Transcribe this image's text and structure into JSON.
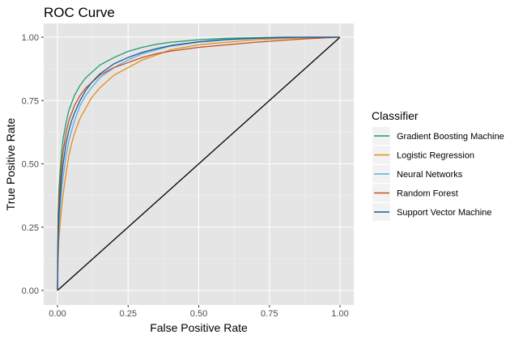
{
  "chart_data": {
    "type": "line",
    "title": "ROC Curve",
    "xlabel": "False Positive Rate",
    "ylabel": "True Positive Rate",
    "xlim": [
      0,
      1
    ],
    "ylim": [
      0,
      1
    ],
    "x_ticks": [
      "0.00",
      "0.25",
      "0.50",
      "0.75",
      "1.00"
    ],
    "y_ticks": [
      "0.00",
      "0.25",
      "0.50",
      "0.75",
      "1.00"
    ],
    "grid": true,
    "panel_background": "#e5e5e5",
    "legend": {
      "title": "Classifier",
      "position": "right"
    },
    "series": [
      {
        "name": "Gradient Boosting Machine",
        "color": "#1b9e6b",
        "points": [
          [
            0,
            0
          ],
          [
            0.002,
            0.3
          ],
          [
            0.005,
            0.4
          ],
          [
            0.01,
            0.48
          ],
          [
            0.015,
            0.55
          ],
          [
            0.02,
            0.6
          ],
          [
            0.03,
            0.66
          ],
          [
            0.04,
            0.71
          ],
          [
            0.05,
            0.74
          ],
          [
            0.06,
            0.77
          ],
          [
            0.08,
            0.81
          ],
          [
            0.1,
            0.84
          ],
          [
            0.12,
            0.86
          ],
          [
            0.15,
            0.89
          ],
          [
            0.2,
            0.92
          ],
          [
            0.25,
            0.944
          ],
          [
            0.3,
            0.96
          ],
          [
            0.35,
            0.972
          ],
          [
            0.4,
            0.98
          ],
          [
            0.5,
            0.99
          ],
          [
            0.6,
            0.996
          ],
          [
            0.7,
            0.998
          ],
          [
            0.8,
            1.0
          ],
          [
            0.9,
            1.0
          ],
          [
            1.0,
            1.0
          ]
        ]
      },
      {
        "name": "Logistic Regression",
        "color": "#e58b1c",
        "points": [
          [
            0,
            0
          ],
          [
            0.002,
            0.12
          ],
          [
            0.005,
            0.2
          ],
          [
            0.01,
            0.27
          ],
          [
            0.015,
            0.33
          ],
          [
            0.02,
            0.38
          ],
          [
            0.03,
            0.46
          ],
          [
            0.04,
            0.53
          ],
          [
            0.05,
            0.58
          ],
          [
            0.06,
            0.62
          ],
          [
            0.08,
            0.68
          ],
          [
            0.1,
            0.72
          ],
          [
            0.12,
            0.76
          ],
          [
            0.15,
            0.8
          ],
          [
            0.2,
            0.85
          ],
          [
            0.25,
            0.88
          ],
          [
            0.3,
            0.91
          ],
          [
            0.35,
            0.93
          ],
          [
            0.4,
            0.95
          ],
          [
            0.5,
            0.97
          ],
          [
            0.6,
            0.98
          ],
          [
            0.7,
            0.99
          ],
          [
            0.8,
            0.995
          ],
          [
            0.9,
            0.998
          ],
          [
            1.0,
            1.0
          ]
        ]
      },
      {
        "name": "Neural Networks",
        "color": "#5aaee0",
        "points": [
          [
            0,
            0
          ],
          [
            0.002,
            0.16
          ],
          [
            0.005,
            0.25
          ],
          [
            0.01,
            0.33
          ],
          [
            0.015,
            0.4
          ],
          [
            0.02,
            0.45
          ],
          [
            0.03,
            0.53
          ],
          [
            0.04,
            0.59
          ],
          [
            0.05,
            0.63
          ],
          [
            0.06,
            0.67
          ],
          [
            0.08,
            0.73
          ],
          [
            0.1,
            0.77
          ],
          [
            0.12,
            0.8
          ],
          [
            0.15,
            0.84
          ],
          [
            0.2,
            0.88
          ],
          [
            0.25,
            0.91
          ],
          [
            0.3,
            0.935
          ],
          [
            0.35,
            0.95
          ],
          [
            0.4,
            0.965
          ],
          [
            0.5,
            0.98
          ],
          [
            0.6,
            0.99
          ],
          [
            0.7,
            0.995
          ],
          [
            0.8,
            0.998
          ],
          [
            0.9,
            1.0
          ],
          [
            1.0,
            1.0
          ]
        ]
      },
      {
        "name": "Random Forest",
        "color": "#c4501c",
        "points": [
          [
            0,
            0
          ],
          [
            0.002,
            0.25
          ],
          [
            0.005,
            0.35
          ],
          [
            0.01,
            0.43
          ],
          [
            0.015,
            0.5
          ],
          [
            0.02,
            0.55
          ],
          [
            0.03,
            0.62
          ],
          [
            0.04,
            0.67
          ],
          [
            0.05,
            0.7
          ],
          [
            0.06,
            0.73
          ],
          [
            0.08,
            0.77
          ],
          [
            0.1,
            0.8
          ],
          [
            0.12,
            0.82
          ],
          [
            0.15,
            0.85
          ],
          [
            0.2,
            0.88
          ],
          [
            0.25,
            0.9
          ],
          [
            0.3,
            0.92
          ],
          [
            0.35,
            0.935
          ],
          [
            0.4,
            0.945
          ],
          [
            0.5,
            0.96
          ],
          [
            0.6,
            0.97
          ],
          [
            0.7,
            0.98
          ],
          [
            0.8,
            0.988
          ],
          [
            0.9,
            0.995
          ],
          [
            1.0,
            1.0
          ]
        ]
      },
      {
        "name": "Support Vector Machine",
        "color": "#1f5a9a",
        "points": [
          [
            0,
            0
          ],
          [
            0.002,
            0.2
          ],
          [
            0.005,
            0.3
          ],
          [
            0.01,
            0.38
          ],
          [
            0.015,
            0.45
          ],
          [
            0.02,
            0.5
          ],
          [
            0.03,
            0.58
          ],
          [
            0.04,
            0.63
          ],
          [
            0.05,
            0.67
          ],
          [
            0.06,
            0.7
          ],
          [
            0.08,
            0.75
          ],
          [
            0.1,
            0.79
          ],
          [
            0.12,
            0.82
          ],
          [
            0.15,
            0.855
          ],
          [
            0.2,
            0.895
          ],
          [
            0.25,
            0.92
          ],
          [
            0.3,
            0.94
          ],
          [
            0.35,
            0.955
          ],
          [
            0.4,
            0.967
          ],
          [
            0.5,
            0.982
          ],
          [
            0.6,
            0.991
          ],
          [
            0.7,
            0.996
          ],
          [
            0.8,
            0.999
          ],
          [
            0.9,
            1.0
          ],
          [
            1.0,
            1.0
          ]
        ]
      }
    ],
    "reference_line": {
      "color": "#000000",
      "points": [
        [
          0,
          0
        ],
        [
          1,
          1
        ]
      ]
    }
  }
}
